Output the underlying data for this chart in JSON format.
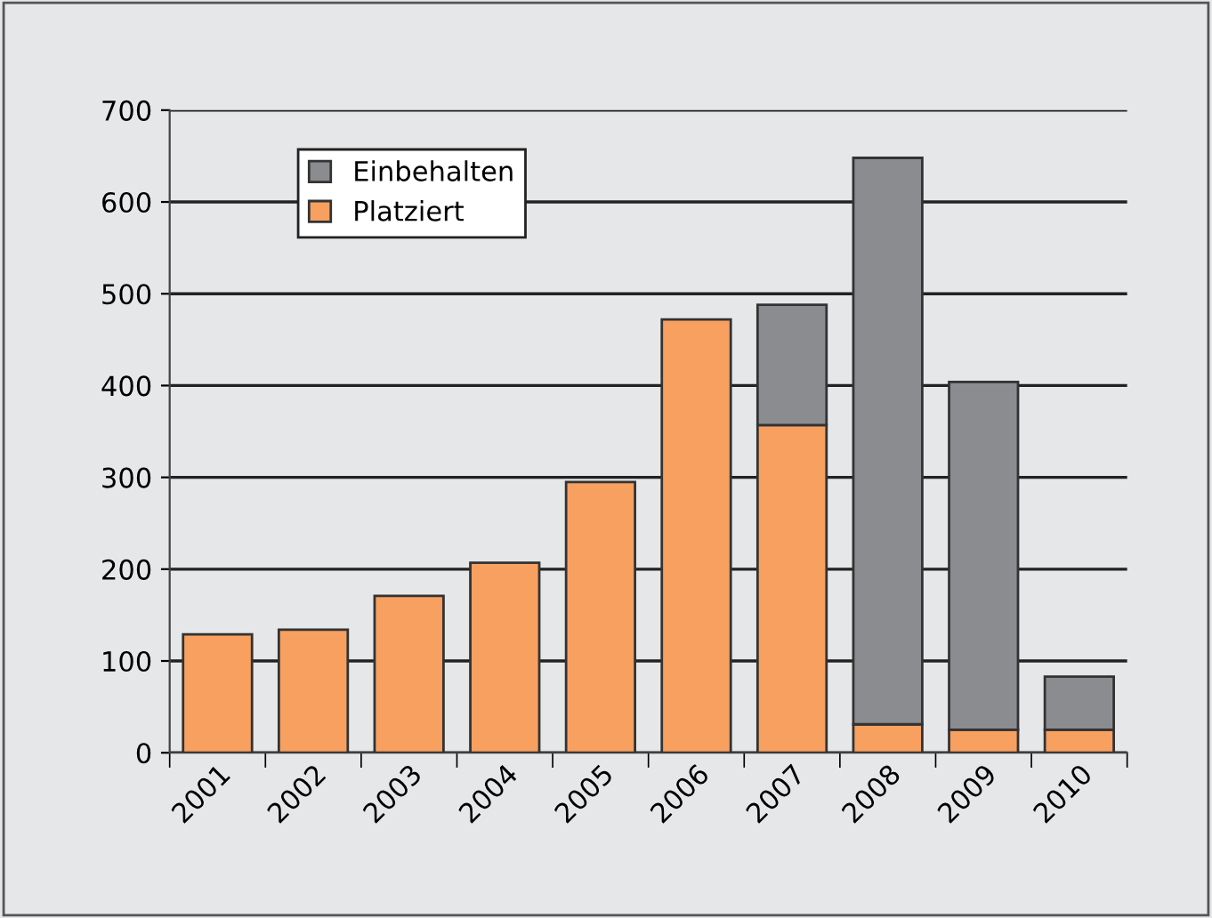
{
  "chart_data": {
    "type": "bar",
    "stacked": true,
    "categories": [
      "2001",
      "2002",
      "2003",
      "2004",
      "2005",
      "2006",
      "2007",
      "2008",
      "2009",
      "2010"
    ],
    "series": [
      {
        "name": "Platziert",
        "color": "#f7a060",
        "values": [
          129,
          134,
          171,
          207,
          295,
          472,
          357,
          31,
          25,
          25
        ]
      },
      {
        "name": "Einbehalten",
        "color": "#8a8c90",
        "values": [
          null,
          null,
          null,
          null,
          null,
          null,
          131,
          617,
          379,
          58
        ]
      }
    ],
    "ylim": [
      0,
      700
    ],
    "yticks": [
      0,
      100,
      200,
      300,
      400,
      500,
      600,
      700
    ],
    "grid": "y",
    "legend": "top left"
  }
}
